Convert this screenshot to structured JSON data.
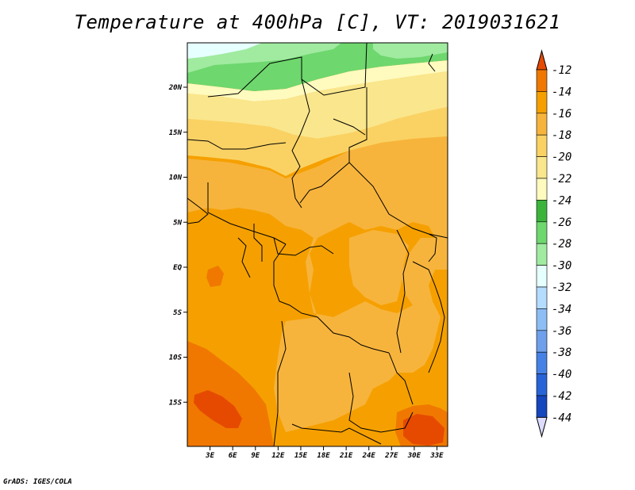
{
  "title": "Temperature at 400hPa [C], VT: 2019031621",
  "footer": "GrADS: IGES/COLA",
  "map": {
    "lat_labels": [
      "20N",
      "15N",
      "10N",
      "5N",
      "EQ",
      "5S",
      "10S",
      "15S"
    ],
    "lat_values": [
      20,
      15,
      10,
      5,
      0,
      -5,
      -10,
      -15
    ],
    "lon_labels": [
      "3E",
      "6E",
      "9E",
      "12E",
      "15E",
      "18E",
      "21E",
      "24E",
      "27E",
      "30E",
      "33E"
    ],
    "lon_values": [
      3,
      6,
      9,
      12,
      15,
      18,
      21,
      24,
      27,
      30,
      33
    ]
  },
  "colorbar": {
    "labels": [
      "-12",
      "-14",
      "-16",
      "-18",
      "-20",
      "-22",
      "-24",
      "-26",
      "-28",
      "-30",
      "-32",
      "-34",
      "-36",
      "-38",
      "-40",
      "-42",
      "-44"
    ],
    "colors": [
      "#e64a00",
      "#f07800",
      "#f5a000",
      "#f7b43c",
      "#fad264",
      "#fae68c",
      "#fffabe",
      "#3cb43c",
      "#6ed76e",
      "#a0eba0",
      "#e6ffff",
      "#b4dcff",
      "#8cbef5",
      "#6ea0eb",
      "#4682e6",
      "#2864d7",
      "#1446be",
      "#0a23a0",
      "#00006e"
    ],
    "top_arrow_color": "#e64a00",
    "bottom_arrow_color": "#dcdcff"
  },
  "field_colors": {
    "t_minus_12_to_14": "#f07800",
    "t_minus_14_to_16": "#f5a000",
    "t_minus_16_to_18": "#f7b43c",
    "t_minus_18_to_20": "#fad264",
    "t_minus_20_to_22": "#fae68c",
    "t_minus_22_to_24": "#fffabe",
    "t_minus_24_to_26": "#6ed76e",
    "t_minus_26_to_28": "#a0eba0",
    "t_minus_28_to_30": "#e6ffff",
    "t_warm_patch": "#e64a00"
  }
}
